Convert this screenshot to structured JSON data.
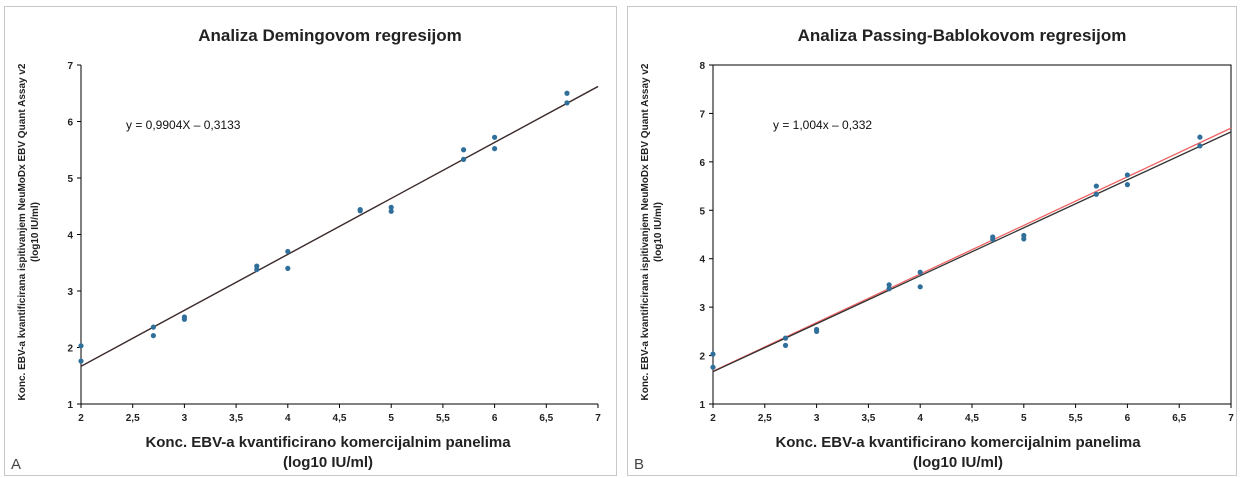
{
  "chart_data": [
    {
      "type": "scatter",
      "panel_label": "A",
      "title": "Analiza Demingovom regresijom",
      "xlabel": [
        "Konc. EBV-a kvantificirano komercijalnim panelima",
        "(log10 IU/ml)"
      ],
      "ylabel": [
        "Konc. EBV-a kvantificirana ispitivanjem NeuMoDx EBV Quant Assay v2",
        "(log10 IU/ml)"
      ],
      "equation": "y = 0,9904X – 0,3133",
      "xlim": [
        2,
        7
      ],
      "ylim": [
        1,
        7
      ],
      "x_ticks": [
        "2",
        "2,5",
        "3",
        "3,5",
        "4",
        "4,5",
        "5",
        "5,5",
        "6",
        "6,5",
        "7"
      ],
      "y_ticks": [
        "1",
        "2",
        "3",
        "4",
        "5",
        "6",
        "7"
      ],
      "grid": false,
      "series": [
        {
          "kind": "points",
          "color": "#2f6f9a",
          "points": [
            [
              2.0,
              2.03
            ],
            [
              2.0,
              1.76
            ],
            [
              2.7,
              2.36
            ],
            [
              2.7,
              2.21
            ],
            [
              3.0,
              2.54
            ],
            [
              3.0,
              2.5
            ],
            [
              3.7,
              3.44
            ],
            [
              3.7,
              3.38
            ],
            [
              4.0,
              3.7
            ],
            [
              4.0,
              3.4
            ],
            [
              4.7,
              4.44
            ],
            [
              4.7,
              4.42
            ],
            [
              5.0,
              4.48
            ],
            [
              5.0,
              4.41
            ],
            [
              5.7,
              5.5
            ],
            [
              5.7,
              5.33
            ],
            [
              6.0,
              5.72
            ],
            [
              6.0,
              5.52
            ],
            [
              6.7,
              6.5
            ],
            [
              6.7,
              6.33
            ]
          ]
        },
        {
          "kind": "line",
          "color": "#c03030",
          "slope": 0.9904,
          "intercept": -0.3133
        },
        {
          "kind": "line",
          "color": "#333333",
          "slope": 0.9904,
          "intercept": -0.3133
        }
      ]
    },
    {
      "type": "scatter",
      "panel_label": "B",
      "title": "Analiza Passing-Bablokovom regresijom",
      "xlabel": [
        "Konc. EBV-a kvantificirano komercijalnim panelima",
        "(log10 IU/ml)"
      ],
      "ylabel": [
        "Konc. EBV-a kvantificirana ispitivanjem NeuMoDx EBV Quant Assay v2",
        "(log10 IU/ml)"
      ],
      "equation": "y = 1,004x – 0,332",
      "xlim": [
        2,
        7
      ],
      "ylim": [
        1,
        8
      ],
      "x_ticks": [
        "2",
        "2,5",
        "3",
        "3,5",
        "4",
        "4,5",
        "5",
        "5,5",
        "6",
        "6,5",
        "7"
      ],
      "y_ticks": [
        "1",
        "2",
        "3",
        "4",
        "5",
        "6",
        "7",
        "8"
      ],
      "grid": false,
      "series": [
        {
          "kind": "points",
          "color": "#2f6f9a",
          "points": [
            [
              2.0,
              2.03
            ],
            [
              2.0,
              1.76
            ],
            [
              2.7,
              2.36
            ],
            [
              2.7,
              2.21
            ],
            [
              3.0,
              2.54
            ],
            [
              3.0,
              2.5
            ],
            [
              3.7,
              3.46
            ],
            [
              3.7,
              3.38
            ],
            [
              4.0,
              3.72
            ],
            [
              4.0,
              3.42
            ],
            [
              4.7,
              4.45
            ],
            [
              4.7,
              4.4
            ],
            [
              5.0,
              4.48
            ],
            [
              5.0,
              4.41
            ],
            [
              5.7,
              5.5
            ],
            [
              5.7,
              5.33
            ],
            [
              6.0,
              5.73
            ],
            [
              6.0,
              5.53
            ],
            [
              6.7,
              6.51
            ],
            [
              6.7,
              6.33
            ]
          ]
        },
        {
          "kind": "line",
          "color": "#f06060",
          "slope": 1.004,
          "intercept": -0.332
        },
        {
          "kind": "line",
          "color": "#333333",
          "slope": 0.9904,
          "intercept": -0.3133
        }
      ]
    }
  ]
}
